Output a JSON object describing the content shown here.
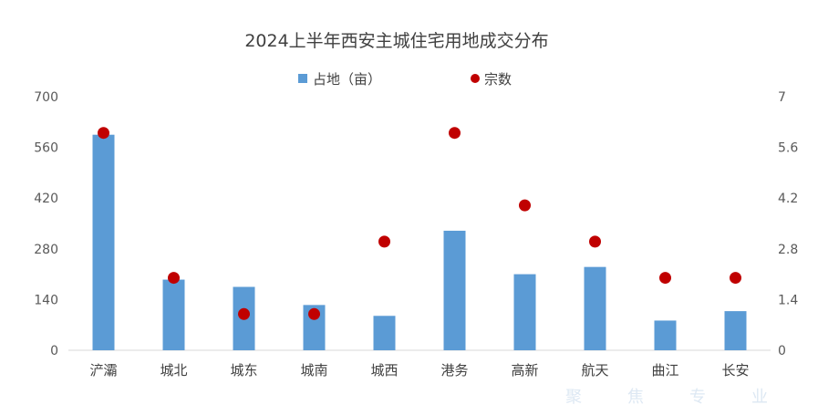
{
  "chart_data": {
    "type": "bar",
    "title": "2024上半年西安主城住宅用地成交分布",
    "categories": [
      "浐灞",
      "城北",
      "城东",
      "城南",
      "城西",
      "港务",
      "高新",
      "航天",
      "曲江",
      "长安"
    ],
    "series": [
      {
        "name": "占地（亩）",
        "type": "bar",
        "axis": "left",
        "color": "#5b9bd5",
        "values": [
          595,
          195,
          175,
          125,
          95,
          330,
          210,
          230,
          82,
          108
        ]
      },
      {
        "name": "宗数",
        "type": "scatter",
        "axis": "right",
        "color": "#c00000",
        "values": [
          6,
          2,
          1,
          1,
          3,
          6,
          4,
          3,
          2,
          2
        ]
      }
    ],
    "ylim_left": [
      0,
      700
    ],
    "yticks_left": [
      "0",
      "140",
      "280",
      "420",
      "560",
      "700"
    ],
    "ylim_right": [
      0,
      7
    ],
    "yticks_right": [
      "0",
      "1.4",
      "2.8",
      "4.2",
      "5.6",
      "7"
    ],
    "legend_position": "top-center",
    "grid": false
  },
  "watermark": [
    "聚",
    "焦",
    "专",
    "业"
  ]
}
